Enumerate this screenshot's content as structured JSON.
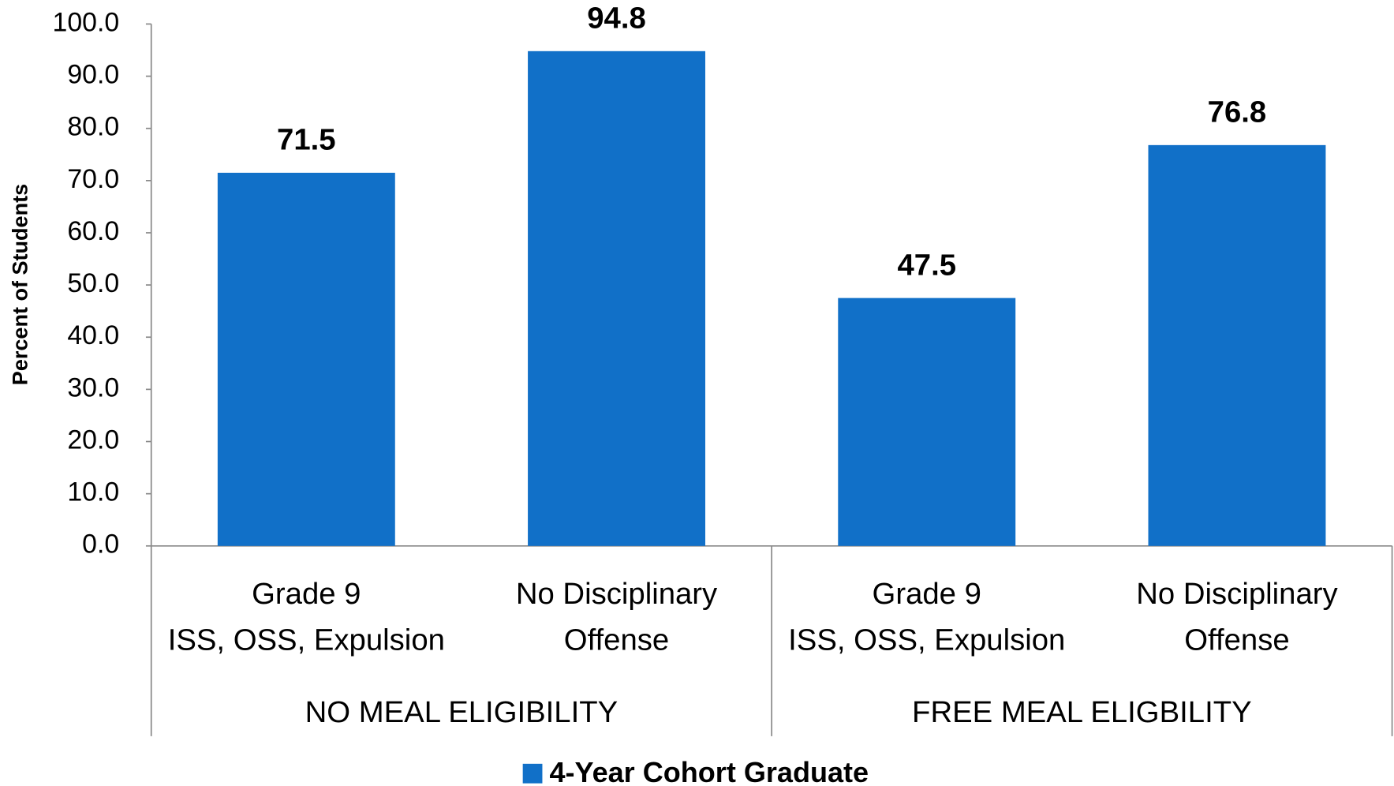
{
  "chart_data": {
    "type": "bar",
    "y_label": "Percent of Students",
    "categories": [
      [
        "Grade 9",
        "ISS, OSS, Expulsion"
      ],
      [
        "No Disciplinary",
        "Offense"
      ],
      [
        "Grade 9",
        "ISS, OSS, Expulsion"
      ],
      [
        "No Disciplinary",
        "Offense"
      ]
    ],
    "groups": [
      "NO MEAL ELIGIBILITY",
      "FREE MEAL ELIGBILITY"
    ],
    "series": [
      {
        "name": "4-Year Cohort Graduate",
        "color": "#1170c8",
        "values": [
          71.5,
          94.8,
          47.5,
          76.8
        ]
      }
    ],
    "ylim": [
      0,
      100
    ],
    "yticks": [
      {
        "value": 0,
        "label": "0.0"
      },
      {
        "value": 10,
        "label": "10.0"
      },
      {
        "value": 20,
        "label": "20.0"
      },
      {
        "value": 30,
        "label": "30.0"
      },
      {
        "value": 40,
        "label": "40.0"
      },
      {
        "value": 50,
        "label": "50.0"
      },
      {
        "value": 60,
        "label": "60.0"
      },
      {
        "value": 70,
        "label": "70.0"
      },
      {
        "value": 80,
        "label": "80.0"
      },
      {
        "value": 90,
        "label": "90.0"
      },
      {
        "value": 100,
        "label": "100.0"
      }
    ],
    "grid": false,
    "legend": "bottom"
  }
}
